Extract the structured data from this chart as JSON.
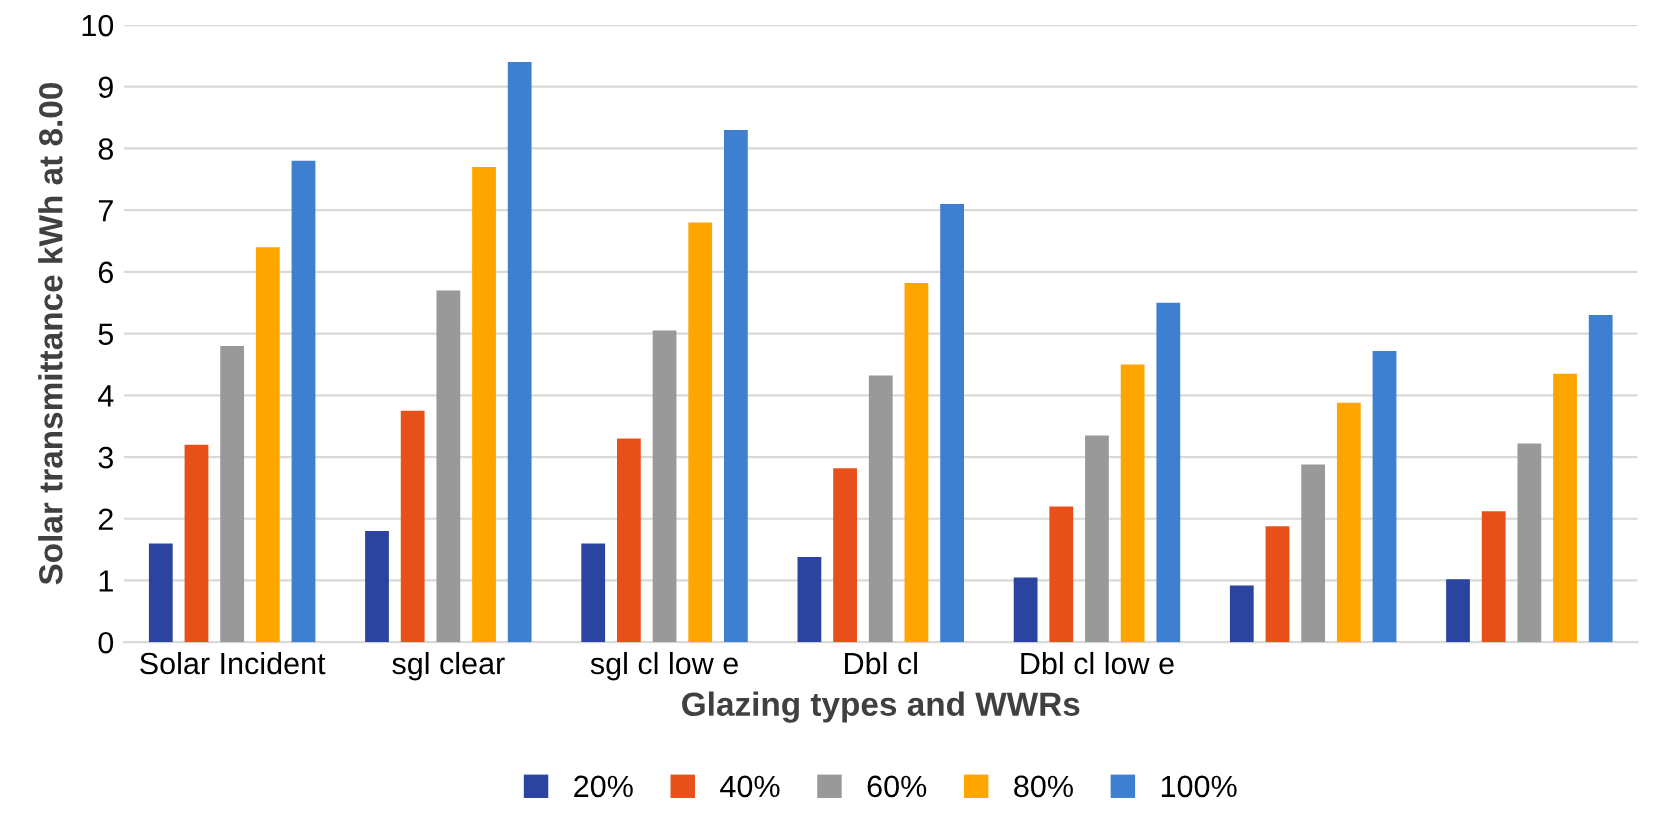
{
  "chart_data": {
    "type": "bar",
    "xlabel": "Glazing types and WWRs",
    "ylabel": "Solar transmittance kWh at 8.00",
    "categories": [
      "Solar Incident",
      "sgl clear",
      "sgl cl low e",
      "Dbl cl",
      "Dbl cl low e",
      null,
      null
    ],
    "series": [
      {
        "name": "20%",
        "color": "#2b44a0",
        "values": [
          1.6,
          1.8,
          1.6,
          1.38,
          1.05,
          0.92,
          1.02
        ]
      },
      {
        "name": "40%",
        "color": "#e8501a",
        "values": [
          3.2,
          3.75,
          3.3,
          2.82,
          2.2,
          1.88,
          2.12
        ]
      },
      {
        "name": "60%",
        "color": "#999999",
        "values": [
          4.8,
          5.7,
          5.05,
          4.32,
          3.35,
          2.88,
          3.22
        ]
      },
      {
        "name": "80%",
        "color": "#ffa500",
        "values": [
          6.4,
          7.7,
          6.8,
          5.82,
          4.5,
          3.88,
          4.35
        ]
      },
      {
        "name": "100%",
        "color": "#3f7fcf",
        "values": [
          7.8,
          9.4,
          8.3,
          7.1,
          5.5,
          4.72,
          5.3
        ]
      }
    ],
    "ylim": [
      0,
      10
    ],
    "yticks": [
      0,
      1,
      2,
      3,
      4,
      5,
      6,
      7,
      8,
      9,
      10
    ],
    "grid": "y",
    "legend": "bottom"
  }
}
